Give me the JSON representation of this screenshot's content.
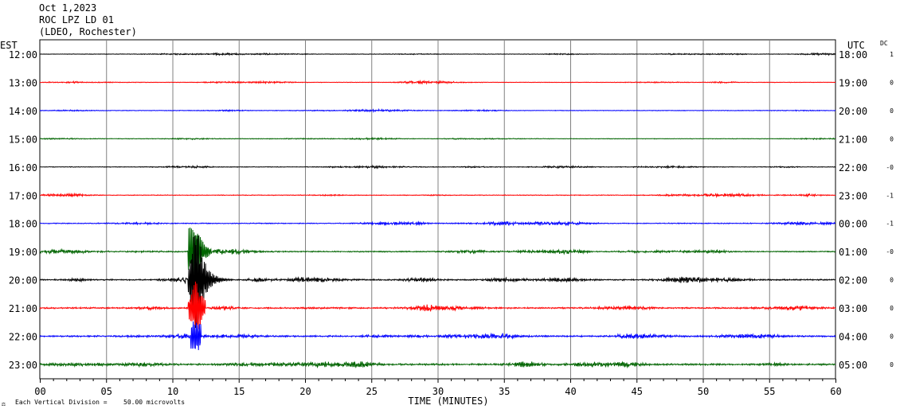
{
  "header": {
    "date": "Oct 1,2023",
    "station": "ROC LPZ LD 01",
    "network": "(LDEO, Rochester)"
  },
  "footer": {
    "scale_prefix": "Each Vertical Division =",
    "scale_value": "50.00 microvolts"
  },
  "chart_data": {
    "type": "line",
    "title": "ROC LPZ LD 01",
    "xlabel": "TIME (MINUTES)",
    "ylabel_left": "EST",
    "ylabel_right": "UTC",
    "dc_label": "DC",
    "xlim": [
      0,
      60
    ],
    "x_ticks": [
      "00",
      "05",
      "10",
      "15",
      "20",
      "25",
      "30",
      "35",
      "40",
      "45",
      "50",
      "55",
      "60"
    ],
    "grid": "vertical lines every 5 minutes",
    "trace_colors": [
      "#000000",
      "#ff0000",
      "#0000ff",
      "#006400"
    ],
    "rows": [
      {
        "est": "12:00",
        "utc": "18:00",
        "dc": "1",
        "amplitude": 0.25
      },
      {
        "est": "13:00",
        "utc": "19:00",
        "dc": "0",
        "amplitude": 0.25
      },
      {
        "est": "14:00",
        "utc": "20:00",
        "dc": "0",
        "amplitude": 0.28
      },
      {
        "est": "15:00",
        "utc": "21:00",
        "dc": "0",
        "amplitude": 0.28
      },
      {
        "est": "16:00",
        "utc": "22:00",
        "dc": "-0",
        "amplitude": 0.3
      },
      {
        "est": "17:00",
        "utc": "23:00",
        "dc": "-1",
        "amplitude": 0.35
      },
      {
        "est": "18:00",
        "utc": "00:00",
        "dc": "-1",
        "amplitude": 0.45
      },
      {
        "est": "19:00",
        "utc": "01:00",
        "dc": "-0",
        "amplitude": 0.55
      },
      {
        "est": "20:00",
        "utc": "02:00",
        "dc": "0",
        "amplitude": 0.65
      },
      {
        "est": "21:00",
        "utc": "03:00",
        "dc": "0",
        "amplitude": 0.75
      },
      {
        "est": "22:00",
        "utc": "04:00",
        "dc": "0",
        "amplitude": 0.8
      },
      {
        "est": "23:00",
        "utc": "05:00",
        "dc": "0",
        "amplitude": 0.9
      }
    ],
    "events": [
      {
        "label": "earthquake arrival",
        "row_est": "20:00",
        "start_minute": 11.2,
        "peak_minute": 11.8,
        "end_minute": 14.5
      }
    ]
  }
}
